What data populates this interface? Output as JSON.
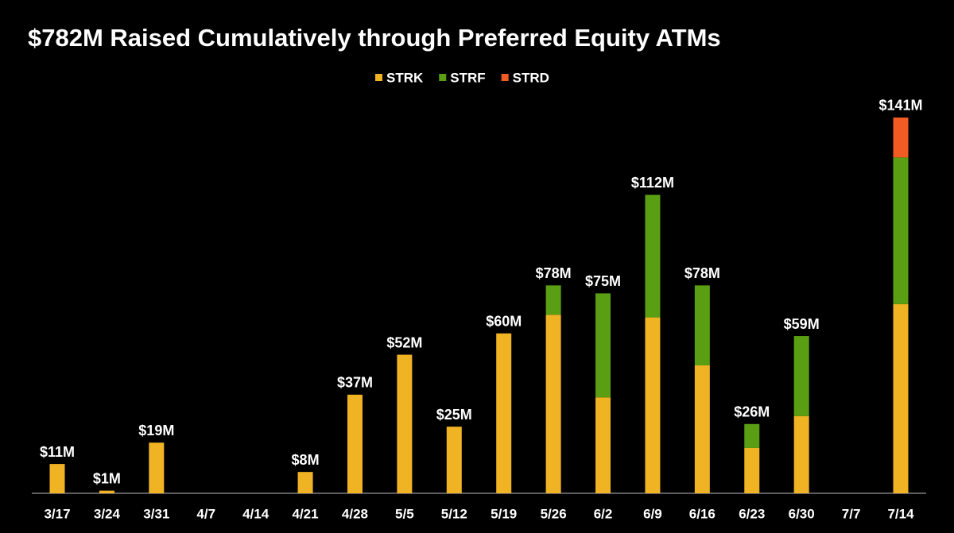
{
  "chart_data": {
    "type": "stacked_bar",
    "title": "$782M Raised Cumulatively through Preferred Equity ATMs",
    "categories": [
      "3/17",
      "3/24",
      "3/31",
      "4/7",
      "4/14",
      "4/21",
      "4/28",
      "5/5",
      "5/12",
      "5/19",
      "5/26",
      "6/2",
      "6/9",
      "6/16",
      "6/23",
      "6/30",
      "7/7",
      "7/14"
    ],
    "series": [
      {
        "name": "STRK",
        "color": "#f0b323",
        "values": [
          11,
          1,
          19,
          0,
          0,
          8,
          37,
          52,
          25,
          60,
          67,
          36,
          66,
          48,
          17,
          29,
          0,
          71
        ]
      },
      {
        "name": "STRF",
        "color": "#5a9e14",
        "values": [
          0,
          0,
          0,
          0,
          0,
          0,
          0,
          0,
          0,
          0,
          11,
          39,
          46,
          30,
          9,
          30,
          0,
          55
        ]
      },
      {
        "name": "STRD",
        "color": "#f25c22",
        "values": [
          0,
          0,
          0,
          0,
          0,
          0,
          0,
          0,
          0,
          0,
          0,
          0,
          0,
          0,
          0,
          0,
          0,
          15
        ]
      }
    ],
    "totals": {
      "values": [
        11,
        1,
        19,
        null,
        null,
        8,
        37,
        52,
        25,
        60,
        78,
        75,
        112,
        78,
        26,
        59,
        null,
        141
      ],
      "value_labels": [
        "$11M",
        "$1M",
        "$19M",
        null,
        null,
        "$8M",
        "$37M",
        "$52M",
        "$25M",
        "$60M",
        "$78M",
        "$75M",
        "$112M",
        "$78M",
        "$26M",
        "$59M",
        null,
        "$141M"
      ]
    }
  }
}
